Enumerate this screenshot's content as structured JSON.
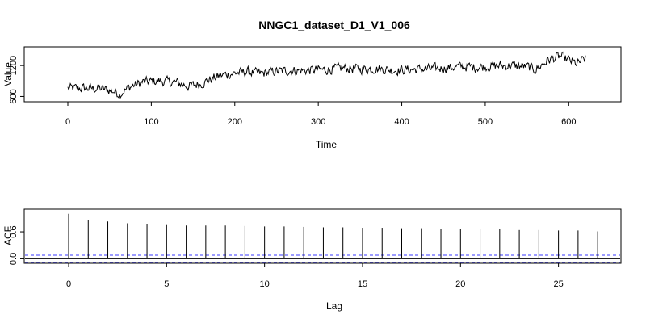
{
  "chart_data": [
    {
      "type": "line",
      "title": "NNGC1_dataset_D1_V1_006",
      "xlabel": "Time",
      "ylabel": "Value",
      "xlim": [
        0,
        620
      ],
      "ylim": [
        560,
        1500
      ],
      "xticks": [
        0,
        100,
        200,
        300,
        400,
        500,
        600
      ],
      "yticks": [
        600,
        1200
      ],
      "anchors_x": [
        0,
        20,
        40,
        55,
        62,
        75,
        90,
        110,
        130,
        145,
        160,
        175,
        190,
        200,
        215,
        230,
        250,
        270,
        290,
        310,
        330,
        350,
        370,
        390,
        410,
        430,
        450,
        470,
        490,
        510,
        530,
        550,
        560,
        575,
        590,
        600,
        610,
        620
      ],
      "anchors_y": [
        760,
        760,
        750,
        700,
        650,
        790,
        880,
        900,
        870,
        800,
        850,
        960,
        1030,
        1050,
        1080,
        1040,
        1090,
        1100,
        1110,
        1120,
        1150,
        1130,
        1140,
        1110,
        1120,
        1130,
        1150,
        1180,
        1170,
        1190,
        1200,
        1180,
        1120,
        1300,
        1380,
        1300,
        1230,
        1330
      ]
    },
    {
      "type": "bar",
      "xlabel": "Lag",
      "ylabel": "ACF",
      "xlim": [
        0,
        28
      ],
      "ylim": [
        -0.1,
        1.05
      ],
      "xticks": [
        0,
        5,
        10,
        15,
        20,
        25
      ],
      "yticks": [
        0.0,
        0.6
      ],
      "lags": [
        0,
        1,
        2,
        3,
        4,
        5,
        6,
        7,
        8,
        9,
        10,
        11,
        12,
        13,
        14,
        15,
        16,
        17,
        18,
        19,
        20,
        21,
        22,
        23,
        24,
        25,
        26,
        27
      ],
      "values": [
        1.0,
        0.87,
        0.83,
        0.79,
        0.77,
        0.75,
        0.74,
        0.74,
        0.74,
        0.73,
        0.72,
        0.72,
        0.71,
        0.7,
        0.7,
        0.69,
        0.69,
        0.68,
        0.68,
        0.67,
        0.67,
        0.66,
        0.66,
        0.64,
        0.64,
        0.63,
        0.63,
        0.61
      ],
      "conf_bound": 0.08,
      "conf_color": "#3b3bff"
    }
  ]
}
